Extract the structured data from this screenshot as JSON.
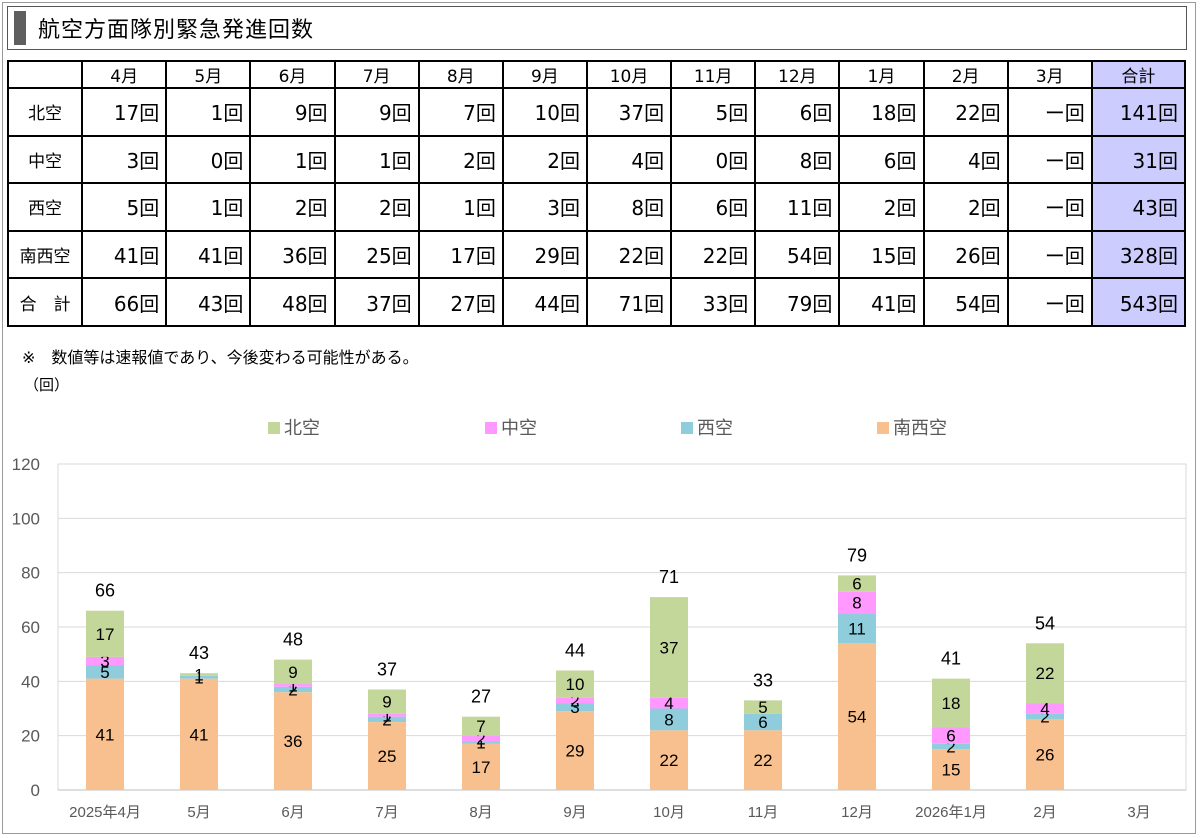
{
  "title": "航空方面隊別緊急発進回数",
  "table": {
    "header": [
      "",
      "4月",
      "5月",
      "6月",
      "7月",
      "8月",
      "9月",
      "10月",
      "11月",
      "12月",
      "1月",
      "2月",
      "3月",
      "合計"
    ],
    "rows": [
      {
        "label": "北空",
        "cells": [
          "17回",
          "1回",
          "9回",
          "9回",
          "7回",
          "10回",
          "37回",
          "5回",
          "6回",
          "18回",
          "22回",
          "ー回",
          "141回"
        ]
      },
      {
        "label": "中空",
        "cells": [
          "3回",
          "0回",
          "1回",
          "1回",
          "2回",
          "2回",
          "4回",
          "0回",
          "8回",
          "6回",
          "4回",
          "ー回",
          "31回"
        ]
      },
      {
        "label": "西空",
        "cells": [
          "5回",
          "1回",
          "2回",
          "2回",
          "1回",
          "3回",
          "8回",
          "6回",
          "11回",
          "2回",
          "2回",
          "ー回",
          "43回"
        ]
      },
      {
        "label": "南西空",
        "cells": [
          "41回",
          "41回",
          "36回",
          "25回",
          "17回",
          "29回",
          "22回",
          "22回",
          "54回",
          "15回",
          "26回",
          "ー回",
          "328回"
        ]
      },
      {
        "label": "合　計",
        "cells": [
          "66回",
          "43回",
          "48回",
          "37回",
          "27回",
          "44回",
          "71回",
          "33回",
          "79回",
          "41回",
          "54回",
          "ー回",
          "543回"
        ]
      }
    ]
  },
  "note": "※　数値等は速報値であり、今後変わる可能性がある。",
  "unit_label": "（回）",
  "chart_data": {
    "type": "bar",
    "stacked": true,
    "categories": [
      "2025年4月",
      "5月",
      "6月",
      "7月",
      "8月",
      "9月",
      "10月",
      "11月",
      "12月",
      "2026年1月",
      "2月",
      "3月"
    ],
    "series": [
      {
        "name": "南西空",
        "color": "#f8c08e",
        "values": [
          41,
          41,
          36,
          25,
          17,
          29,
          22,
          22,
          54,
          15,
          26,
          null
        ]
      },
      {
        "name": "西空",
        "color": "#8fccdc",
        "values": [
          5,
          1,
          2,
          2,
          1,
          3,
          8,
          6,
          11,
          2,
          2,
          null
        ]
      },
      {
        "name": "中空",
        "color": "#ff99ff",
        "values": [
          3,
          0,
          1,
          1,
          2,
          2,
          4,
          0,
          8,
          6,
          4,
          null
        ]
      },
      {
        "name": "北空",
        "color": "#c4d79b",
        "values": [
          17,
          1,
          9,
          9,
          7,
          10,
          37,
          5,
          6,
          18,
          22,
          null
        ]
      }
    ],
    "totals": [
      66,
      43,
      48,
      37,
      27,
      44,
      71,
      33,
      79,
      41,
      54,
      null
    ],
    "ylim": [
      0,
      120
    ],
    "yticks": [
      0,
      20,
      40,
      60,
      80,
      100,
      120
    ],
    "ylabel": "（回）",
    "legend_position": "top",
    "grid": true
  }
}
